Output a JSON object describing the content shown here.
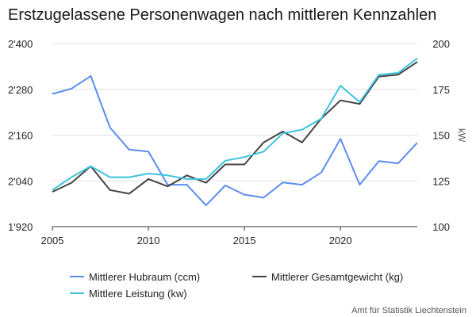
{
  "chart_data": {
    "type": "line",
    "title": "Erstzugelassene Personenwagen nach mittleren Kennzahlen",
    "x": [
      2005,
      2006,
      2007,
      2008,
      2009,
      2010,
      2011,
      2012,
      2013,
      2014,
      2015,
      2016,
      2017,
      2018,
      2019,
      2020,
      2021,
      2022,
      2023,
      2024
    ],
    "x_ticks": [
      2005,
      2010,
      2015,
      2020
    ],
    "xlim": [
      2005,
      2024
    ],
    "y_left": {
      "ylim": [
        1920,
        2400
      ],
      "ticks": [
        "1'920",
        "2'040",
        "2'160",
        "2'280",
        "2'400"
      ],
      "tick_values": [
        1920,
        2040,
        2160,
        2280,
        2400
      ]
    },
    "y_right": {
      "label": "kW",
      "ylim": [
        100,
        200
      ],
      "ticks": [
        "100",
        "125",
        "150",
        "175",
        "200"
      ],
      "tick_values": [
        100,
        125,
        150,
        175,
        200
      ]
    },
    "grid": true,
    "legend_position": "bottom",
    "series": [
      {
        "name": "Mittlerer Hubraum (ccm)",
        "axis": "left",
        "color": "#5b8def",
        "values": [
          2268,
          2282,
          2315,
          2180,
          2122,
          2117,
          2030,
          2030,
          1976,
          2028,
          2004,
          1996,
          2036,
          2030,
          2062,
          2150,
          2030,
          2092,
          2086,
          2140
        ]
      },
      {
        "name": "Mittlerer Gesamtgewicht (kg)",
        "axis": "right",
        "color": "#444444",
        "values": [
          119,
          124,
          133,
          120,
          118,
          126,
          122,
          128,
          124,
          134,
          134,
          146,
          152,
          146,
          159,
          169,
          167,
          182,
          183,
          190
        ]
      },
      {
        "name": "Mittlere Leistung (kw)",
        "axis": "right",
        "color": "#3cc3de",
        "values": [
          120,
          127,
          133,
          127,
          127,
          129,
          128,
          126,
          126,
          136,
          138,
          141,
          151,
          153,
          159,
          177,
          168,
          183,
          184,
          192
        ]
      }
    ],
    "source": "Amt für Statistik Liechtenstein"
  }
}
